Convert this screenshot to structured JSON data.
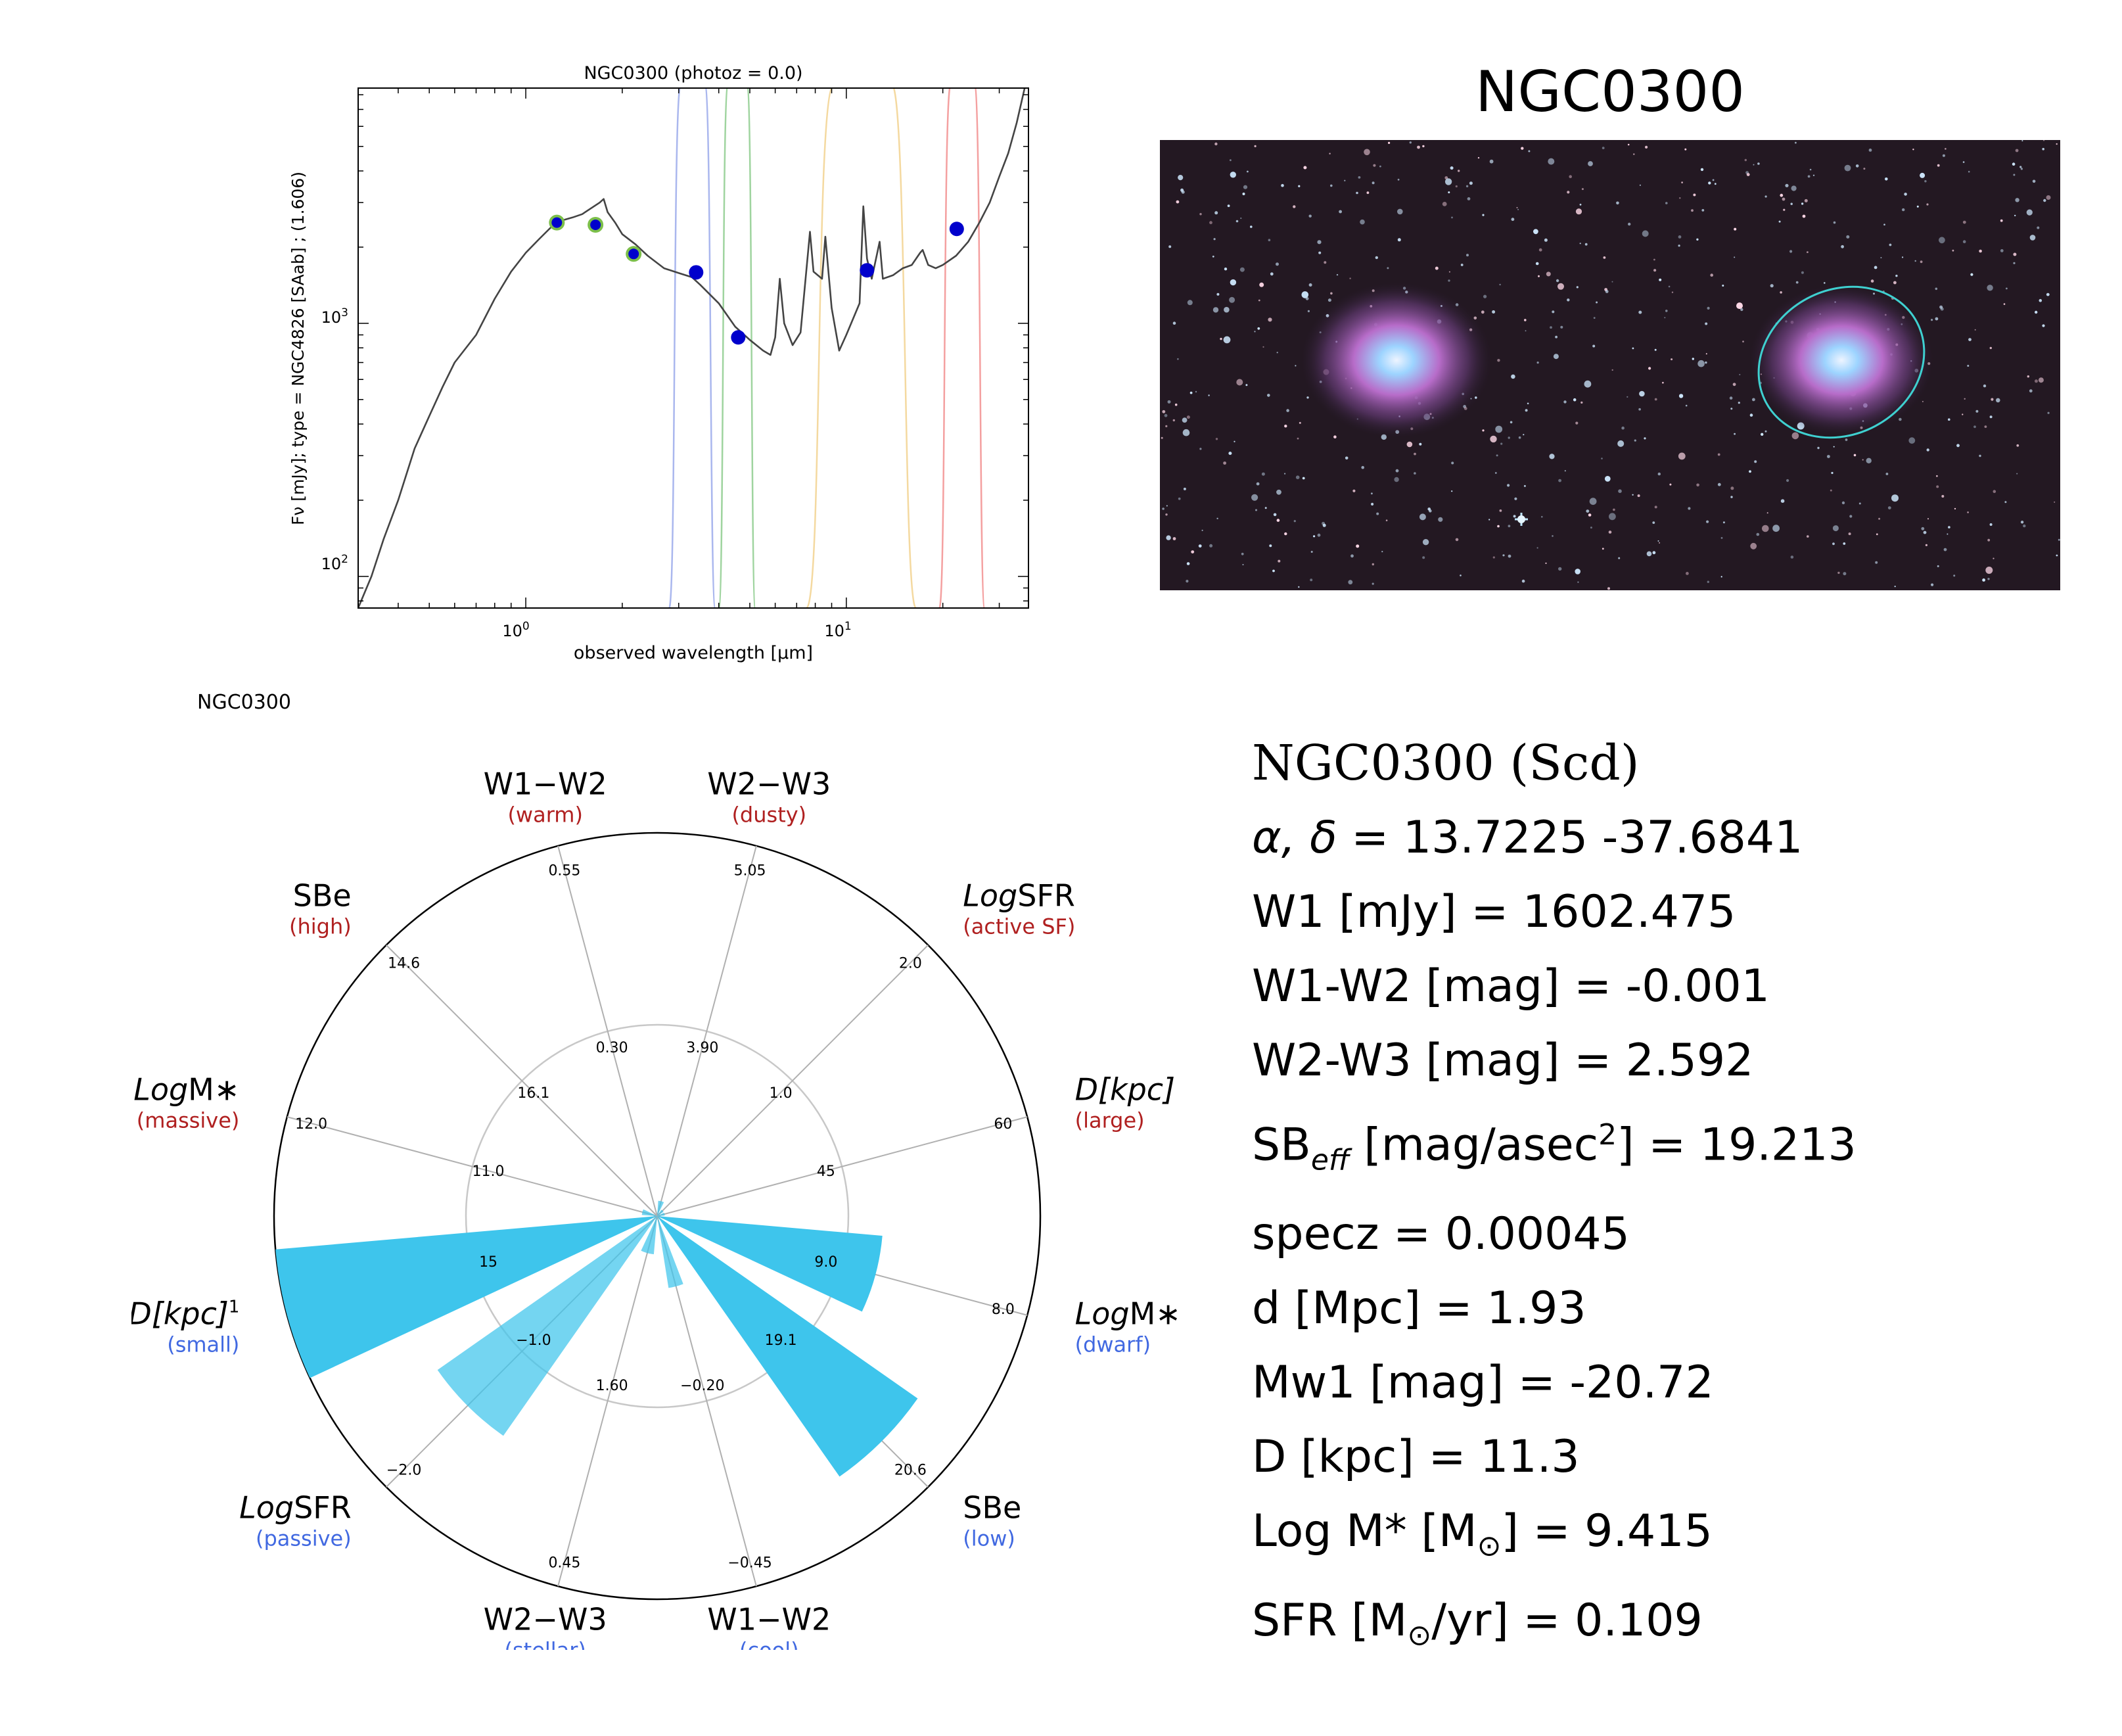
{
  "chart_data": [
    {
      "type": "line",
      "title": "NGC0300 (photoz = 0.0)",
      "xlabel": "observed wavelength [μm]",
      "ylabel": "Fν [mJy];  type = NGC4826 [SAab] ; (1.606)",
      "xscale": "log",
      "yscale": "log",
      "xlim": [
        0.3,
        37
      ],
      "ylim": [
        75,
        8500
      ],
      "x_ticklabels": [
        "10^0",
        "10^1"
      ],
      "y_ticklabels": [
        "10^2",
        "10^3"
      ],
      "series": [
        {
          "kind": "template",
          "color": "#444444",
          "points": [
            [
              0.3,
              75
            ],
            [
              0.33,
              100
            ],
            [
              0.36,
              140
            ],
            [
              0.4,
              200
            ],
            [
              0.45,
              320
            ],
            [
              0.5,
              430
            ],
            [
              0.55,
              560
            ],
            [
              0.6,
              700
            ],
            [
              0.7,
              900
            ],
            [
              0.8,
              1250
            ],
            [
              0.9,
              1600
            ],
            [
              1.0,
              1900
            ],
            [
              1.1,
              2150
            ],
            [
              1.2,
              2400
            ],
            [
              1.3,
              2550
            ],
            [
              1.4,
              2620
            ],
            [
              1.5,
              2700
            ],
            [
              1.6,
              2850
            ],
            [
              1.7,
              3000
            ],
            [
              1.75,
              3100
            ],
            [
              1.8,
              2750
            ],
            [
              1.9,
              2500
            ],
            [
              2.0,
              2250
            ],
            [
              2.2,
              2050
            ],
            [
              2.4,
              1850
            ],
            [
              2.7,
              1650
            ],
            [
              3.0,
              1580
            ],
            [
              3.3,
              1520
            ],
            [
              3.5,
              1420
            ],
            [
              4.0,
              1200
            ],
            [
              4.5,
              970
            ],
            [
              5.0,
              860
            ],
            [
              5.5,
              780
            ],
            [
              5.8,
              750
            ],
            [
              6.0,
              880
            ],
            [
              6.2,
              1500
            ],
            [
              6.4,
              1000
            ],
            [
              6.8,
              820
            ],
            [
              7.2,
              920
            ],
            [
              7.7,
              2300
            ],
            [
              7.9,
              1600
            ],
            [
              8.4,
              1500
            ],
            [
              8.6,
              2200
            ],
            [
              9.0,
              1150
            ],
            [
              9.5,
              780
            ],
            [
              10.0,
              900
            ],
            [
              11.0,
              1200
            ],
            [
              11.3,
              2900
            ],
            [
              11.6,
              1800
            ],
            [
              12.0,
              1500
            ],
            [
              12.7,
              2100
            ],
            [
              13.0,
              1500
            ],
            [
              14.0,
              1550
            ],
            [
              15.0,
              1650
            ],
            [
              16.0,
              1700
            ],
            [
              17.0,
              1900
            ],
            [
              17.3,
              1950
            ],
            [
              18.0,
              1700
            ],
            [
              19.0,
              1650
            ],
            [
              20.0,
              1700
            ],
            [
              22.0,
              1850
            ],
            [
              24.0,
              2100
            ],
            [
              26.0,
              2500
            ],
            [
              28.0,
              3000
            ],
            [
              30.0,
              3800
            ],
            [
              32.0,
              4700
            ],
            [
              34.0,
              6200
            ],
            [
              36.0,
              8500
            ]
          ]
        },
        {
          "kind": "photometry",
          "color": "#0000cc",
          "points": [
            [
              1.25,
              2500
            ],
            [
              1.65,
              2450
            ],
            [
              2.17,
              1880
            ],
            [
              3.4,
              1590
            ],
            [
              4.6,
              880
            ],
            [
              11.6,
              1620
            ],
            [
              22.1,
              2360
            ]
          ]
        }
      ],
      "filters": [
        {
          "name": "W1",
          "color": "#aab7ee"
        },
        {
          "name": "W2",
          "color": "#9fd49f"
        },
        {
          "name": "W3",
          "color": "#f4d9a0"
        },
        {
          "name": "W4",
          "color": "#f4a0a0"
        }
      ]
    },
    {
      "type": "polar-bar",
      "title": "NGC0300",
      "bar_color": "#3ec5ec",
      "axes": [
        {
          "label": "W1−W2",
          "sublabel": "(warm)",
          "sublabel_color": "#b02020",
          "outer": "0.55",
          "mid": "0.30",
          "italic_prefix": ""
        },
        {
          "label": "W2−W3",
          "sublabel": "(dusty)",
          "sublabel_color": "#b02020",
          "outer": "5.05",
          "mid": "3.90",
          "italic_prefix": ""
        },
        {
          "label": "SFR",
          "sublabel": "(active SF)",
          "sublabel_color": "#b02020",
          "outer": "2.0",
          "mid": "1.0",
          "italic_prefix": "Log"
        },
        {
          "label": "[kpc]",
          "sublabel": "(large)",
          "sublabel_color": "#b02020",
          "outer": "60",
          "mid": "45",
          "italic_prefix": "D"
        },
        {
          "label": "M∗",
          "sublabel": "(dwarf)",
          "sublabel_color": "#4169e1",
          "outer": "8.0",
          "mid": "9.0",
          "italic_prefix": "Log"
        },
        {
          "label": "SBe",
          "sublabel": "(low)",
          "sublabel_color": "#4169e1",
          "outer": "20.6",
          "mid": "19.1",
          "italic_prefix": ""
        },
        {
          "label": "W1−W2",
          "sublabel": "(cool)",
          "sublabel_color": "#4169e1",
          "outer": "−0.45",
          "mid": "−0.20",
          "italic_prefix": ""
        },
        {
          "label": "W2−W3",
          "sublabel": "(stellar)",
          "sublabel_color": "#4169e1",
          "outer": "0.45",
          "mid": "1.60",
          "italic_prefix": ""
        },
        {
          "label": "SFR",
          "sublabel": "(passive)",
          "sublabel_color": "#4169e1",
          "outer": "−2.0",
          "mid": "−1.0",
          "italic_prefix": "Log"
        },
        {
          "label": "[kpc]",
          "sublabel": "(small)",
          "sublabel_color": "#4169e1",
          "outer": "",
          "mid": "15",
          "italic_prefix": "D",
          "superscript": "1"
        },
        {
          "label": "M∗",
          "sublabel": "(massive)",
          "sublabel_color": "#b02020",
          "outer": "12.0",
          "mid": "11.0",
          "italic_prefix": "Log"
        },
        {
          "label": "SBe",
          "sublabel": "(high)",
          "sublabel_color": "#b02020",
          "outer": "14.6",
          "mid": "16.1",
          "italic_prefix": ""
        }
      ],
      "bars": [
        {
          "axis": "W2−W3 (dusty)",
          "value": 0.04
        },
        {
          "axis": "LogSFR (active SF)",
          "value": 0.02
        },
        {
          "axis": "D[kpc] (large)",
          "value": 0.02
        },
        {
          "axis": "LogM∗ (dwarf)",
          "value": 0.59
        },
        {
          "axis": "SBe (low)",
          "value": 0.83
        },
        {
          "axis": "W1−W2 (cool)",
          "value": 0.19
        },
        {
          "axis": "W2−W3 (stellar)",
          "value": 0.1
        },
        {
          "axis": "LogSFR (passive)",
          "value": 0.7
        },
        {
          "axis": "D[kpc] (small)",
          "value": 1.0
        },
        {
          "axis": "LogM∗ (massive)",
          "value": 0.04
        }
      ]
    }
  ],
  "image_panel": {
    "title": "NGC0300"
  },
  "info": {
    "title": "NGC0300  (Scd)",
    "coords": "= 13.7225 -37.6841",
    "w1": "W1 [mJy] = 1602.475",
    "w1w2": "W1-W2 [mag] = -0.001",
    "w2w3": "W2-W3 [mag] = 2.592",
    "sb_prefix": "SB",
    "sb_sub": "eff",
    "sb_mid": " [mag/asec",
    "sb_sup": "2",
    "sb_suffix": "] = 19.213",
    "specz": "specz = 0.00045",
    "dist": "d [Mpc] = 1.93",
    "mw1": "Mw1 [mag] = -20.72",
    "size": "D [kpc] = 11.3",
    "mass_prefix": "Log M* [M",
    "mass_suffix": "] = 9.415",
    "sfr_prefix": "SFR [M",
    "sfr_suffix": "/yr] = 0.109"
  }
}
